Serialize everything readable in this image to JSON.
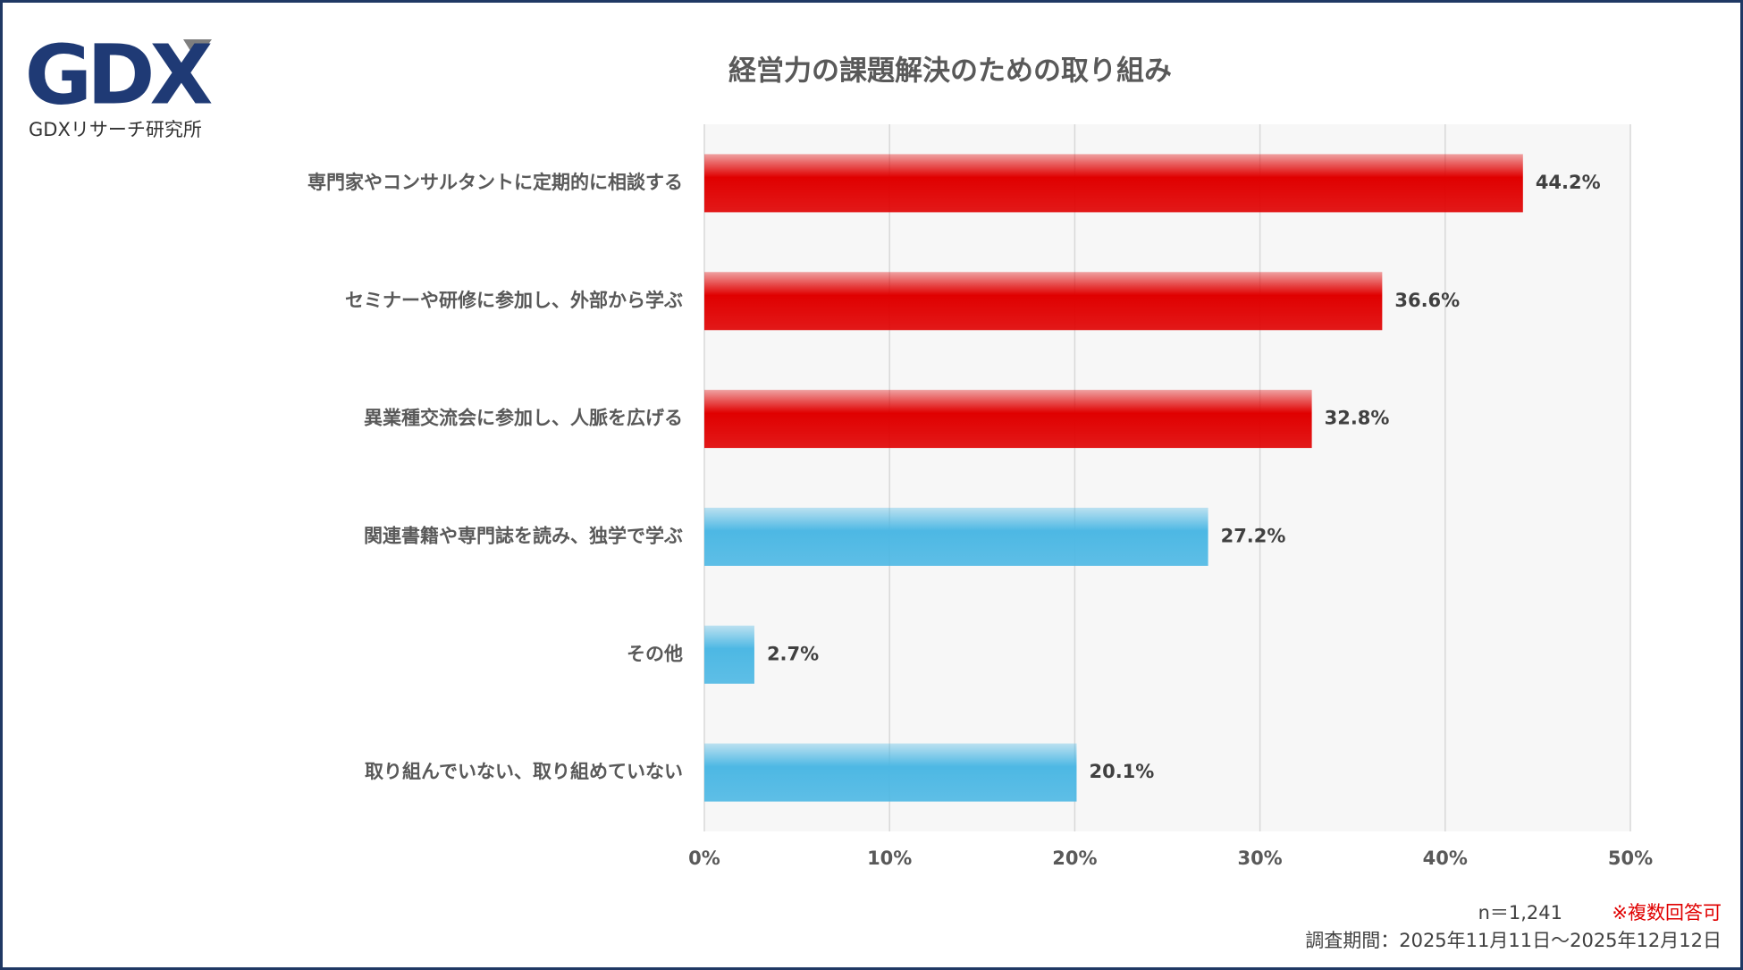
{
  "logo": {
    "mark": "GDX",
    "caption": "GDXリサーチ研究所"
  },
  "chart_data": {
    "type": "hbar",
    "title": "経営力の課題解決のための取り組み",
    "categories": [
      "専門家やコンサルタントに定期的に相談する",
      "セミナーや研修に参加し、外部から学ぶ",
      "異業種交流会に参加し、人脈を広げる",
      "関連書籍や専門誌を読み、独学で学ぶ",
      "その他",
      "取り組んでいない、取り組めていない"
    ],
    "values": [
      44.2,
      36.6,
      32.8,
      27.2,
      2.7,
      20.1
    ],
    "value_labels": [
      "44.2%",
      "36.6%",
      "32.8%",
      "27.2%",
      "2.7%",
      "20.1%"
    ],
    "colors": [
      "#e00000",
      "#e00000",
      "#e00000",
      "#4db8e4",
      "#4db8e4",
      "#4db8e4"
    ],
    "xlim": [
      0,
      50
    ],
    "xticks": [
      {
        "value": 0,
        "label": "0%"
      },
      {
        "value": 10,
        "label": "10%"
      },
      {
        "value": 20,
        "label": "20%"
      },
      {
        "value": 30,
        "label": "30%"
      },
      {
        "value": 40,
        "label": "40%"
      },
      {
        "value": 50,
        "label": "50%"
      }
    ],
    "grid": true
  },
  "footer": {
    "sample": "n＝1,241",
    "multiple": "※複数回答可",
    "period": "調査期間：2025年11月11日～2025年12月12日"
  }
}
